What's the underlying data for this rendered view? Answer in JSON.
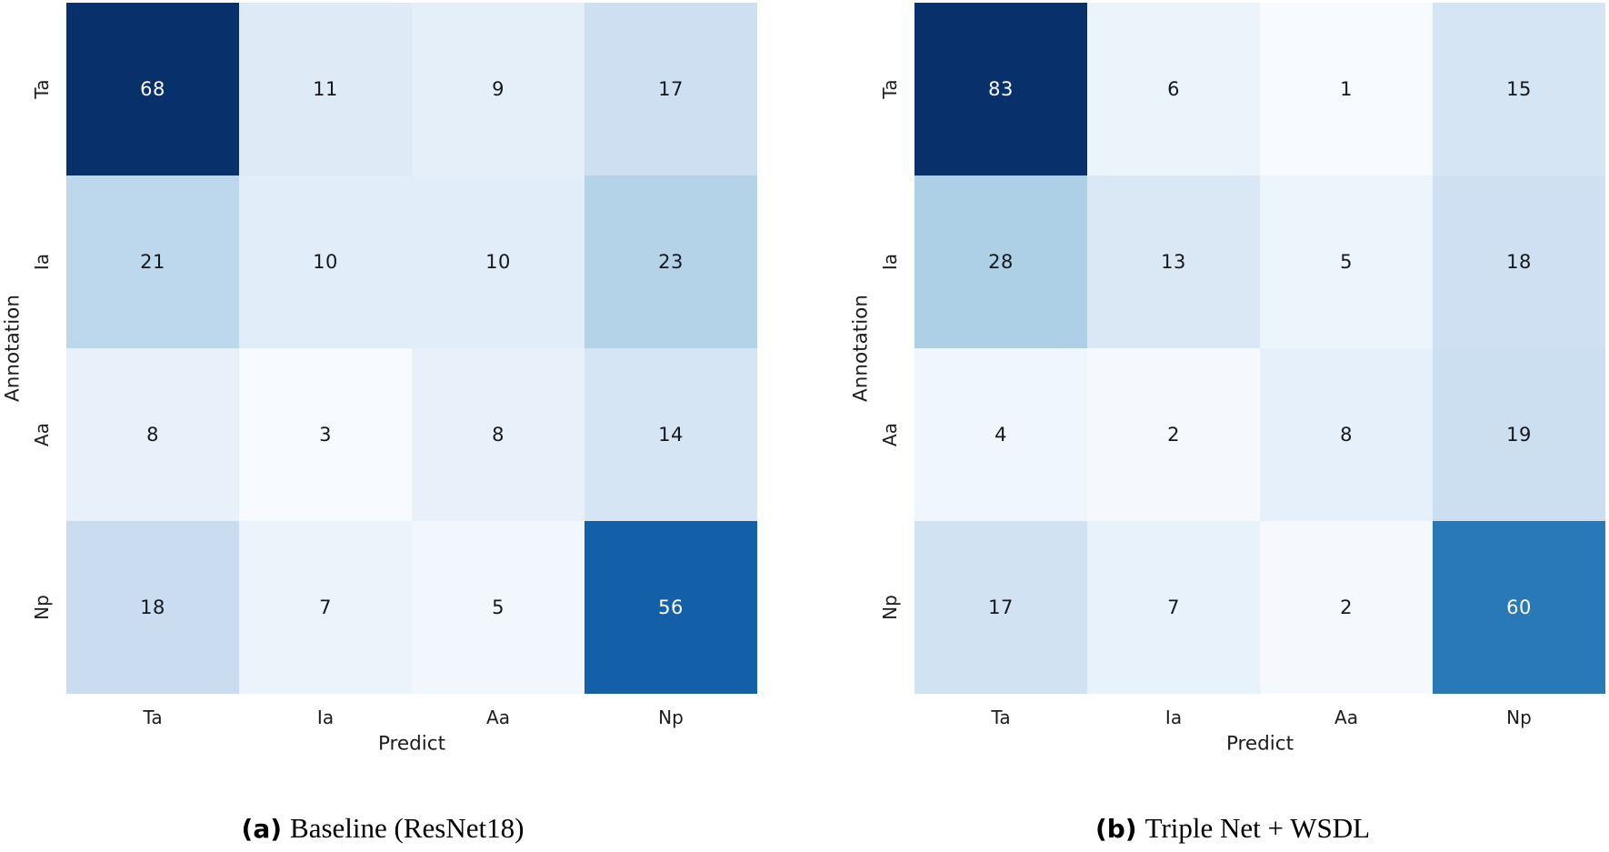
{
  "page": {
    "background": "#ffffff"
  },
  "chart_data": [
    {
      "type": "heatmap",
      "caption": {
        "label": "(a)",
        "text": "Baseline (ResNet18)"
      },
      "xlabel": "Predict",
      "ylabel": "Annotation",
      "x_tick_labels": [
        "Ta",
        "Ia",
        "Aa",
        "Np"
      ],
      "y_tick_labels": [
        "Ta",
        "Ia",
        "Aa",
        "Np"
      ],
      "rows": [
        [
          68,
          11,
          9,
          17
        ],
        [
          21,
          10,
          10,
          23
        ],
        [
          8,
          3,
          8,
          14
        ],
        [
          18,
          7,
          5,
          56
        ]
      ],
      "color_scale": {
        "colormap": "Blues",
        "vmin": 3,
        "vmax": 68
      },
      "legend": "none",
      "grid_lines": "off",
      "text_colors": {
        "on_dark": "#ffffff",
        "on_light": "#16181c"
      }
    },
    {
      "type": "heatmap",
      "caption": {
        "label": "(b)",
        "text": "Triple Net + WSDL"
      },
      "xlabel": "Predict",
      "ylabel": "Annotation",
      "x_tick_labels": [
        "Ta",
        "Ia",
        "Aa",
        "Np"
      ],
      "y_tick_labels": [
        "Ta",
        "Ia",
        "Aa",
        "Np"
      ],
      "rows": [
        [
          83,
          6,
          1,
          15
        ],
        [
          28,
          13,
          5,
          18
        ],
        [
          4,
          2,
          8,
          19
        ],
        [
          17,
          7,
          2,
          60
        ]
      ],
      "color_scale": {
        "colormap": "Blues",
        "vmin": 1,
        "vmax": 83
      },
      "legend": "none",
      "grid_lines": "off",
      "text_colors": {
        "on_dark": "#ffffff",
        "on_light": "#16181c"
      }
    }
  ],
  "colormaps": {
    "Blues": [
      [
        247,
        251,
        255
      ],
      [
        222,
        235,
        247
      ],
      [
        198,
        219,
        239
      ],
      [
        158,
        202,
        225
      ],
      [
        107,
        174,
        214
      ],
      [
        66,
        146,
        198
      ],
      [
        33,
        113,
        181
      ],
      [
        8,
        81,
        156
      ],
      [
        8,
        48,
        107
      ]
    ]
  }
}
